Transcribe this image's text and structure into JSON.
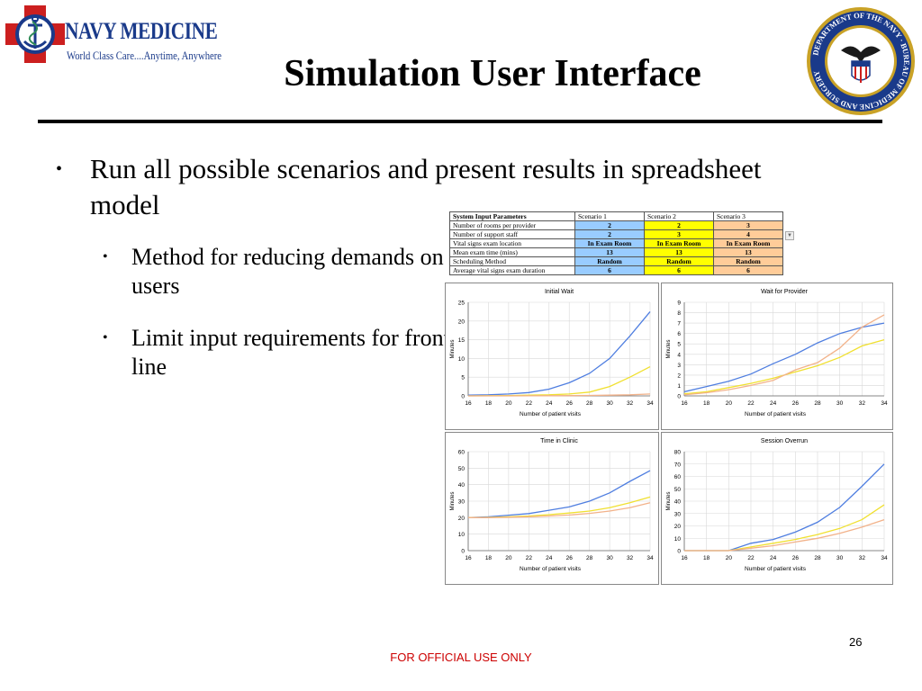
{
  "logo": {
    "name": "NAVY MEDICINE",
    "tagline": "World Class Care....Anytime, Anywhere"
  },
  "seal": {
    "text": "DEPARTMENT OF THE NAVY · BUREAU OF MEDICINE AND SURGERY"
  },
  "title": "Simulation User Interface",
  "bullets": [
    {
      "text": "Run all possible scenarios and present results in spreadsheet model",
      "sub": [
        "Method for  reducing demands on users",
        "Limit input requirements for front line"
      ]
    }
  ],
  "params_table": {
    "header": [
      "System Input Parameters",
      "Scenario 1",
      "Scenario 2",
      "Scenario 3"
    ],
    "rows": [
      {
        "label": "Number of rooms per provider",
        "values": [
          "2",
          "2",
          "3"
        ]
      },
      {
        "label": "Number of support staff",
        "values": [
          "2",
          "3",
          "4"
        ]
      },
      {
        "label": "Vital signs exam location",
        "values": [
          "In Exam Room",
          "In Exam Room",
          "In Exam Room"
        ]
      },
      {
        "label": "Mean exam time (mins)",
        "values": [
          "13",
          "13",
          "13"
        ]
      },
      {
        "label": "Scheduling Method",
        "values": [
          "Random",
          "Random",
          "Random"
        ]
      },
      {
        "label": "Average vital signs exam duration",
        "values": [
          "6",
          "6",
          "6"
        ]
      }
    ]
  },
  "chart_data": [
    {
      "type": "line",
      "title": "Initial  Wait",
      "xlabel": "Number  of patient  visits",
      "ylabel": "Minutes",
      "x": [
        16,
        18,
        20,
        22,
        24,
        26,
        28,
        30,
        32,
        34
      ],
      "xlim": [
        16,
        34
      ],
      "ylim": [
        0,
        25
      ],
      "yticks": [
        0,
        5,
        10,
        15,
        20,
        25
      ],
      "series": [
        {
          "color": "#4f7ee0",
          "values": [
            0.2,
            0.3,
            0.5,
            0.9,
            1.8,
            3.5,
            6,
            10,
            16,
            22.5
          ]
        },
        {
          "color": "#f0e030",
          "values": [
            0,
            0.05,
            0.1,
            0.2,
            0.3,
            0.5,
            1,
            2.5,
            5,
            7.8
          ]
        },
        {
          "color": "#f2b28a",
          "values": [
            0,
            0,
            0,
            0.02,
            0.05,
            0.08,
            0.12,
            0.2,
            0.3,
            0.5
          ]
        }
      ]
    },
    {
      "type": "line",
      "title": "Wait  for Provider",
      "xlabel": "Number  of patient visits",
      "ylabel": "Minutes",
      "x": [
        16,
        18,
        20,
        22,
        24,
        26,
        28,
        30,
        32,
        34
      ],
      "xlim": [
        16,
        34
      ],
      "ylim": [
        0,
        9
      ],
      "yticks": [
        0,
        1,
        2,
        3,
        4,
        5,
        6,
        7,
        8,
        9
      ],
      "series": [
        {
          "color": "#4f7ee0",
          "values": [
            0.4,
            0.9,
            1.4,
            2.1,
            3.1,
            4,
            5.1,
            6,
            6.6,
            7
          ]
        },
        {
          "color": "#f0e030",
          "values": [
            0.2,
            0.4,
            0.8,
            1.2,
            1.7,
            2.3,
            2.9,
            3.7,
            4.8,
            5.4
          ]
        },
        {
          "color": "#f2b28a",
          "values": [
            0.1,
            0.3,
            0.6,
            1,
            1.5,
            2.5,
            3.2,
            4.6,
            6.6,
            7.8
          ]
        }
      ]
    },
    {
      "type": "line",
      "title": "Time  in Clinic",
      "xlabel": "Number of patient visits",
      "ylabel": "Minutes",
      "x": [
        16,
        18,
        20,
        22,
        24,
        26,
        28,
        30,
        32,
        34
      ],
      "xlim": [
        16,
        34
      ],
      "ylim": [
        0,
        60
      ],
      "yticks": [
        0,
        10,
        20,
        30,
        40,
        50,
        60
      ],
      "series": [
        {
          "color": "#4f7ee0",
          "values": [
            20,
            20.5,
            21.5,
            22.5,
            24.5,
            26.5,
            30,
            35,
            42,
            48.5
          ]
        },
        {
          "color": "#f0e030",
          "values": [
            20,
            20.2,
            20.5,
            21,
            21.8,
            22.8,
            24,
            26,
            29,
            32.5
          ]
        },
        {
          "color": "#f2b28a",
          "values": [
            20,
            20,
            20.2,
            20.5,
            21,
            21.6,
            22.6,
            24,
            26,
            29
          ]
        }
      ]
    },
    {
      "type": "line",
      "title": "Session  Overrun",
      "xlabel": "Number of patient visits",
      "ylabel": "Minutes",
      "x": [
        16,
        18,
        20,
        22,
        24,
        26,
        28,
        30,
        32,
        34
      ],
      "xlim": [
        16,
        34
      ],
      "ylim": [
        0,
        80
      ],
      "yticks": [
        0,
        10,
        20,
        30,
        40,
        50,
        60,
        70,
        80
      ],
      "series": [
        {
          "color": "#4f7ee0",
          "values": [
            0,
            0,
            0,
            6,
            9,
            15,
            23,
            35,
            52,
            70
          ]
        },
        {
          "color": "#f0e030",
          "values": [
            0,
            0,
            0,
            3,
            6,
            9,
            13,
            18,
            25,
            37
          ]
        },
        {
          "color": "#f2b28a",
          "values": [
            0,
            0,
            0,
            2,
            4,
            7,
            10,
            14,
            19,
            25
          ]
        }
      ]
    }
  ],
  "footer": "FOR OFFICIAL USE ONLY",
  "page_number": "26"
}
